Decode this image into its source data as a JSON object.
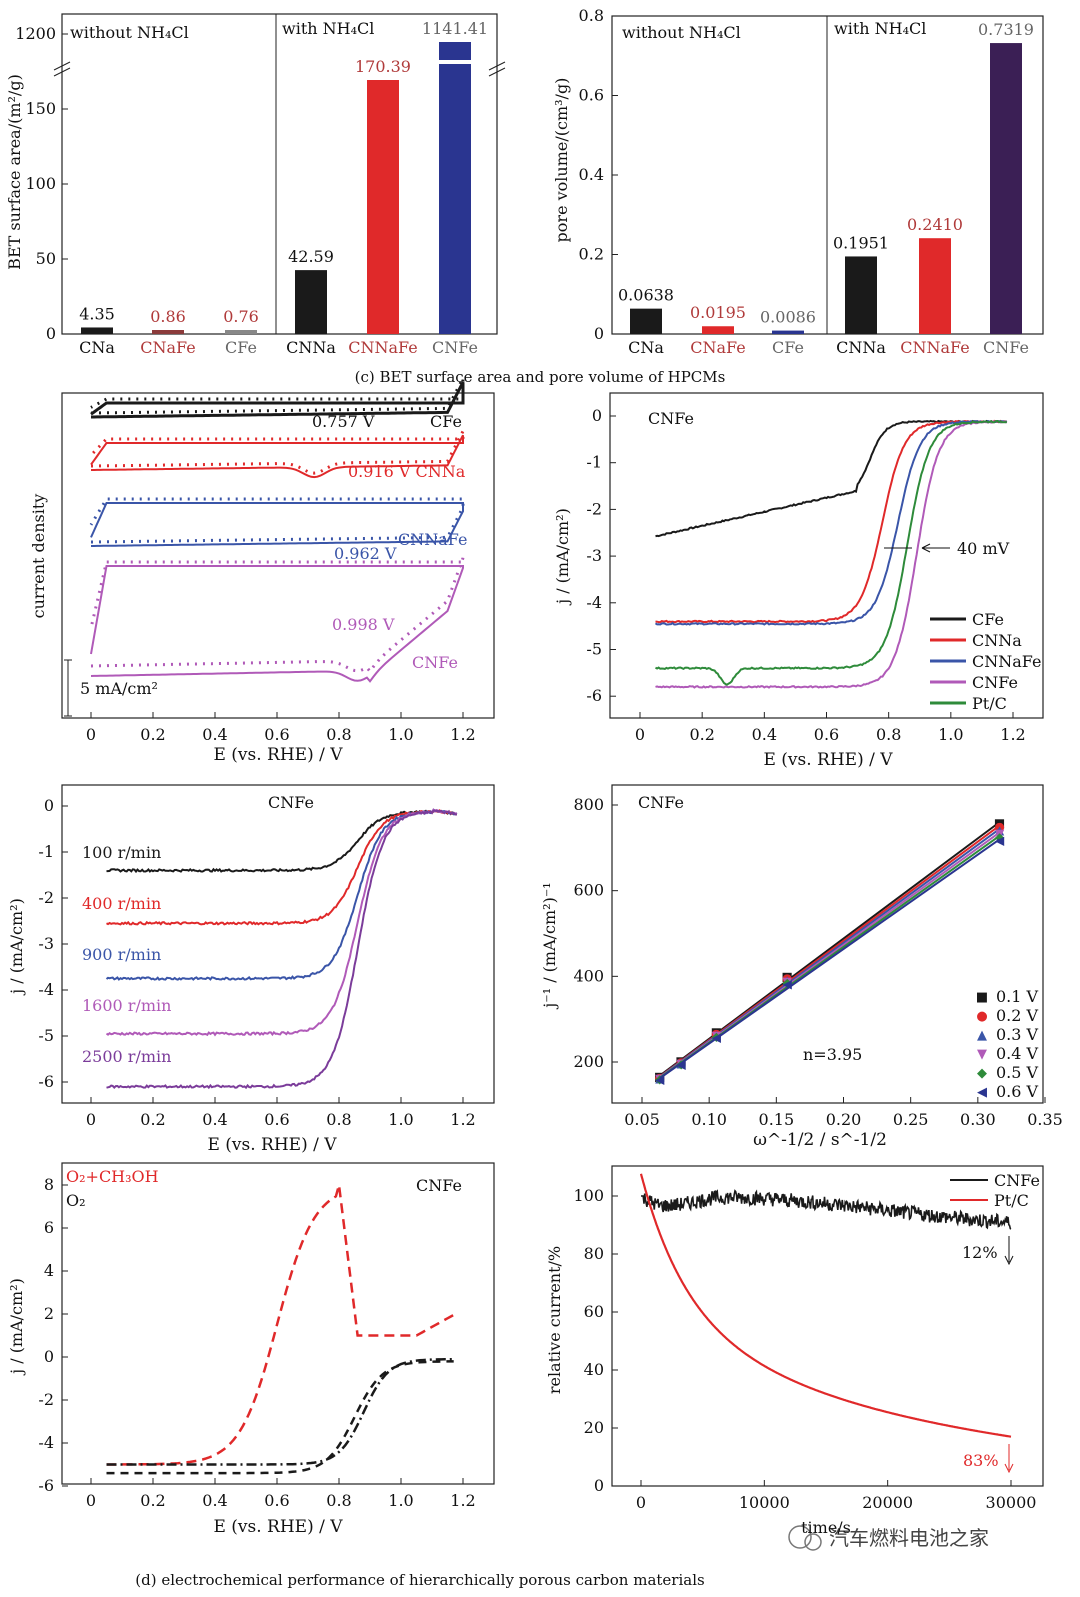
{
  "caption_c": "(c) BET surface area and pore volume of HPCMs",
  "caption_d": "(d) electrochemical performance of hierarchically porous carbon materials",
  "watermark": "汽车燃料电池之家",
  "colors": {
    "black": "#1a1a1a",
    "red": "#e0292a",
    "blue": "#3a55a8",
    "purple": "#b05ab8",
    "green": "#2e8b3a",
    "navy": "#2a3590",
    "darkpurple": "#3b1f55",
    "brown": "#8b3b3b"
  },
  "chart_data": [
    {
      "id": "bet",
      "type": "bar",
      "ylabel": "BET surface area/(m²/g)",
      "yticks": [
        "0",
        "50",
        "100",
        "150",
        "1200"
      ],
      "group_labels": [
        "without NH₄Cl",
        "with NH₄Cl"
      ],
      "categories": [
        "CNa",
        "CNaFe",
        "CFe",
        "CNNa",
        "CNNaFe",
        "CNFe"
      ],
      "values": [
        4.35,
        0.86,
        0.76,
        42.59,
        170.39,
        1141.41
      ],
      "value_labels": [
        "4.35",
        "0.86",
        "0.76",
        "42.59",
        "170.39",
        "1141.41"
      ],
      "bar_colors": [
        "black",
        "brown",
        "gray",
        "black",
        "red",
        "navy"
      ],
      "axis_break": true
    },
    {
      "id": "pore",
      "type": "bar",
      "ylabel": "pore volume/(cm³/g)",
      "yticks": [
        "0",
        "0.2",
        "0.4",
        "0.6",
        "0.8"
      ],
      "group_labels": [
        "without NH₄Cl",
        "with NH₄Cl"
      ],
      "categories": [
        "CNa",
        "CNaFe",
        "CFe",
        "CNNa",
        "CNNaFe",
        "CNFe"
      ],
      "values": [
        0.0638,
        0.0195,
        0.0086,
        0.1951,
        0.241,
        0.7319
      ],
      "value_labels": [
        "0.0638",
        "0.0195",
        "0.0086",
        "0.1951",
        "0.2410",
        "0.7319"
      ],
      "bar_colors": [
        "black",
        "red",
        "navy",
        "black",
        "red",
        "darkpurple"
      ],
      "ylim": [
        0,
        0.8
      ]
    },
    {
      "id": "cv",
      "type": "line",
      "ylabel": "current density",
      "xlabel": "E (vs. RHE) / V",
      "xticks": [
        "0",
        "0.2",
        "0.4",
        "0.6",
        "0.8",
        "1.0",
        "1.2"
      ],
      "scale_bar": "5 mA/cm²",
      "labels": [
        "0.757 V",
        "CFe",
        "0.916 V CNNa",
        "0.962 V",
        "CNNaFe",
        "0.998 V",
        "CNFe"
      ]
    },
    {
      "id": "lsv",
      "type": "line",
      "title": "CNFe",
      "ylabel": "j / (mA/cm²)",
      "xlabel": "E (vs. RHE) / V",
      "xticks": [
        "0",
        "0.2",
        "0.4",
        "0.6",
        "0.8",
        "1.0",
        "1.2"
      ],
      "yticks": [
        "0",
        "-1",
        "-2",
        "-3",
        "-4",
        "-5",
        "-6"
      ],
      "annotation": "40 mV",
      "series": [
        {
          "name": "CFe",
          "color": "black",
          "onset": 0.7,
          "limit": -2.65
        },
        {
          "name": "CNNa",
          "color": "red",
          "onset": 0.78,
          "limit": -4.4
        },
        {
          "name": "CNNaFe",
          "color": "blue",
          "onset": 0.83,
          "limit": -4.45
        },
        {
          "name": "CNFe",
          "color": "purple",
          "onset": 0.89,
          "limit": -5.8
        },
        {
          "name": "Pt/C",
          "color": "green",
          "onset": 0.86,
          "limit": -5.4
        }
      ]
    },
    {
      "id": "rpm",
      "type": "line",
      "title": "CNFe",
      "ylabel": "j / (mA/cm²)",
      "xlabel": "E (vs. RHE) / V",
      "xticks": [
        "0",
        "0.2",
        "0.4",
        "0.6",
        "0.8",
        "1.0",
        "1.2"
      ],
      "yticks": [
        "0",
        "-1",
        "-2",
        "-3",
        "-4",
        "-5",
        "-6"
      ],
      "series": [
        {
          "name": "100 r/min",
          "color": "black",
          "limit": -1.4
        },
        {
          "name": "400 r/min",
          "color": "red",
          "limit": -2.55
        },
        {
          "name": "900 r/min",
          "color": "blue",
          "limit": -3.75
        },
        {
          "name": "1600 r/min",
          "color": "purple",
          "limit": -4.95
        },
        {
          "name": "2500 r/min",
          "color": "#7b3c9a",
          "limit": -6.1
        }
      ]
    },
    {
      "id": "kl",
      "type": "scatter",
      "title": "CNFe",
      "ylabel": "j⁻¹ / (mA/cm²)⁻¹",
      "xlabel": "ω^-1/2 / s^-1/2",
      "xticks": [
        "0.05",
        "0.10",
        "0.15",
        "0.20",
        "0.25",
        "0.30",
        "0.35"
      ],
      "yticks": [
        "200",
        "400",
        "600",
        "800"
      ],
      "annotation": "n=3.95",
      "x": [
        0.0632,
        0.0791,
        0.1054,
        0.1581,
        0.3162
      ],
      "series": [
        {
          "name": "0.1 V",
          "color": "black",
          "marker": "■",
          "y": [
            168,
            205,
            272,
            402,
            760
          ]
        },
        {
          "name": "0.2 V",
          "color": "red",
          "marker": "●",
          "y": [
            166,
            202,
            269,
            398,
            752
          ]
        },
        {
          "name": "0.3 V",
          "color": "blue",
          "marker": "▲",
          "y": [
            165,
            200,
            266,
            394,
            744
          ]
        },
        {
          "name": "0.4 V",
          "color": "purple",
          "marker": "▼",
          "y": [
            164,
            199,
            264,
            390,
            736
          ]
        },
        {
          "name": "0.5 V",
          "color": "green",
          "marker": "◆",
          "y": [
            163,
            198,
            262,
            388,
            728
          ]
        },
        {
          "name": "0.6 V",
          "color": "navy",
          "marker": "◀",
          "y": [
            162,
            197,
            260,
            385,
            720
          ]
        }
      ]
    },
    {
      "id": "meoh",
      "type": "line",
      "title": "CNFe",
      "ylabel": "j / (mA/cm²)",
      "xlabel": "E (vs. RHE) / V",
      "xticks": [
        "0",
        "0.2",
        "0.4",
        "0.6",
        "0.8",
        "1.0",
        "1.2"
      ],
      "yticks": [
        "8",
        "6",
        "4",
        "2",
        "0",
        "-2",
        "-4",
        "-6"
      ],
      "series": [
        {
          "name": "O₂+CH₃OH",
          "color": "red"
        },
        {
          "name": "O₂",
          "color": "black"
        }
      ]
    },
    {
      "id": "stab",
      "type": "line",
      "ylabel": "relative current/%",
      "xlabel": "time/s",
      "xticks": [
        "0",
        "10000",
        "20000",
        "30000"
      ],
      "yticks": [
        "0",
        "20",
        "40",
        "60",
        "80",
        "100"
      ],
      "series": [
        {
          "name": "CNFe",
          "color": "black",
          "end": 88,
          "loss_label": "12%"
        },
        {
          "name": "Pt/C",
          "color": "red",
          "end": 17,
          "loss_label": "83%"
        }
      ]
    }
  ]
}
